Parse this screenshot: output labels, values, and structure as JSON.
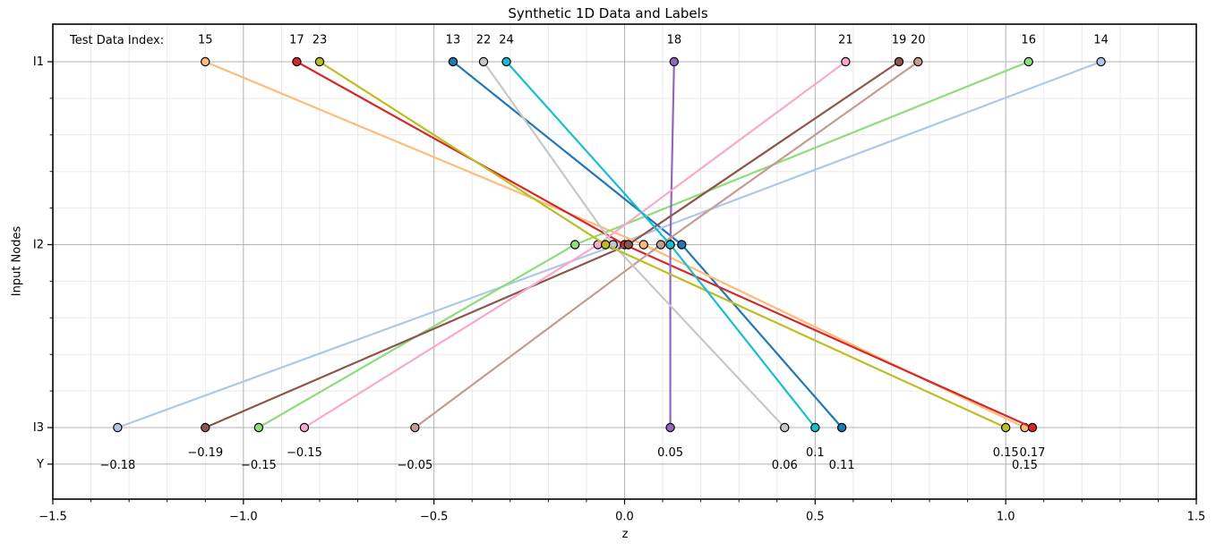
{
  "figure": {
    "background": "#ffffff",
    "spine_color": "#000000",
    "grid_major_color": "#b0b0b0",
    "grid_minor_color": "#e9e9e9",
    "marker_edge_color": "#000000"
  },
  "chart_data": {
    "type": "line",
    "title": "Synthetic 1D Data and Labels",
    "xlabel": "z",
    "ylabel": "Input Nodes",
    "header_label": "Test Data Index:",
    "xlim": [
      -1.5,
      1.5
    ],
    "x_major_ticks": [
      -1.5,
      -1.0,
      -0.5,
      0.0,
      0.5,
      1.0,
      1.5
    ],
    "x_major_tick_labels": [
      "−1.5",
      "−1.0",
      "−0.5",
      "0.0",
      "0.5",
      "1.0",
      "1.5"
    ],
    "x_minor_step": 0.1,
    "y_rows": [
      "I1",
      "I2",
      "I3",
      "Y"
    ],
    "grid": "both",
    "legend": "none",
    "series": [
      {
        "test_index": "13",
        "color": "#1f77b4",
        "values": {
          "I1": -0.45,
          "I2": 0.15,
          "I3": 0.57
        },
        "y_label": "0.11",
        "y_label_row": "lower"
      },
      {
        "test_index": "14",
        "color": "#aec7e8",
        "values": {
          "I1": 1.25,
          "I2": -0.02,
          "I3": -1.33
        },
        "y_label": "−0.18",
        "y_label_row": "lower"
      },
      {
        "test_index": "15",
        "color": "#ffbb78",
        "values": {
          "I1": -1.1,
          "I2": 0.05,
          "I3": 1.05
        },
        "y_label": "0.15",
        "y_label_row": "lower"
      },
      {
        "test_index": "16",
        "color": "#8edc7a",
        "values": {
          "I1": 1.06,
          "I2": -0.13,
          "I3": -0.96
        },
        "y_label": "−0.15",
        "y_label_row": "lower"
      },
      {
        "test_index": "17",
        "color": "#d62728",
        "values": {
          "I1": -0.86,
          "I2": 0.0,
          "I3": 1.07
        },
        "y_label": "0.17",
        "y_label_row": "upper"
      },
      {
        "test_index": "18",
        "color": "#9467bd",
        "values": {
          "I1": 0.13,
          "I2": 0.12,
          "I3": 0.12
        },
        "y_label": "0.05",
        "y_label_row": "upper"
      },
      {
        "test_index": "19",
        "color": "#8c564b",
        "values": {
          "I1": 0.72,
          "I2": 0.01,
          "I3": -1.1
        },
        "y_label": "−0.19",
        "y_label_row": "upper"
      },
      {
        "test_index": "20",
        "color": "#c49c94",
        "values": {
          "I1": 0.77,
          "I2": 0.095,
          "I3": -0.55
        },
        "y_label": "−0.05",
        "y_label_row": "lower"
      },
      {
        "test_index": "21",
        "color": "#f7a8cc",
        "values": {
          "I1": 0.58,
          "I2": -0.07,
          "I3": -0.84
        },
        "y_label": "−0.15",
        "y_label_row": "upper"
      },
      {
        "test_index": "22",
        "color": "#c7c7c7",
        "values": {
          "I1": -0.37,
          "I2": -0.03,
          "I3": 0.42
        },
        "y_label": "0.06",
        "y_label_row": "lower"
      },
      {
        "test_index": "23",
        "color": "#bcbd22",
        "values": {
          "I1": -0.8,
          "I2": -0.05,
          "I3": 1.0
        },
        "y_label": "0.15",
        "y_label_row": "upper"
      },
      {
        "test_index": "24",
        "color": "#17becf",
        "values": {
          "I1": -0.31,
          "I2": 0.12,
          "I3": 0.5
        },
        "y_label": "0.1",
        "y_label_row": "upper"
      }
    ]
  }
}
